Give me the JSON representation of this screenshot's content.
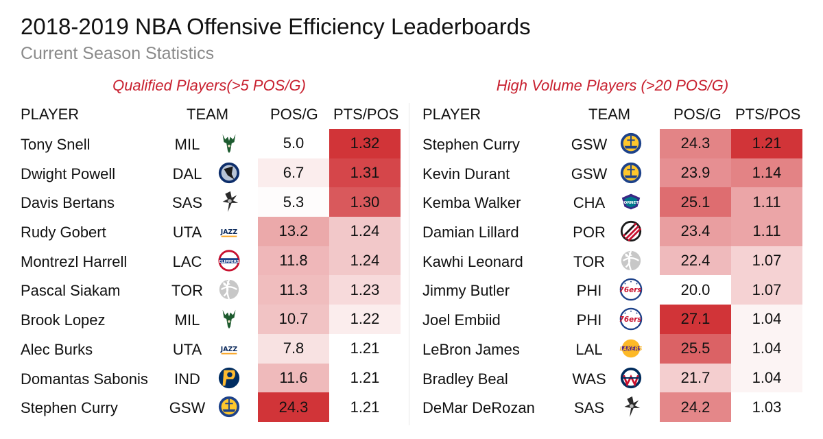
{
  "header": {
    "title": "2018-2019 NBA Offensive Efficiency Leaderboards",
    "subtitle": "Current Season Statistics"
  },
  "colors": {
    "title": "#111111",
    "subtitle": "#8a8a8a",
    "panel_title": "#c8202f",
    "heat_max": "#d13438",
    "heat_min": "#ffffff"
  },
  "chart_data": [
    {
      "type": "table",
      "title": "Qualified Players(>5 POS/G)",
      "columns": [
        "PLAYER",
        "TEAM",
        "POS/G",
        "PTS/POS"
      ],
      "rows": [
        {
          "player": "Tony Snell",
          "team": "MIL",
          "logo": "bucks-logo",
          "pos_g": "5.0",
          "pts_pos": "1.32"
        },
        {
          "player": "Dwight  Powell",
          "team": "DAL",
          "logo": "mavericks-logo",
          "pos_g": "6.7",
          "pts_pos": "1.31"
        },
        {
          "player": "Davis Bertans",
          "team": "SAS",
          "logo": "spurs-logo",
          "pos_g": "5.3",
          "pts_pos": "1.30"
        },
        {
          "player": "Rudy Gobert",
          "team": "UTA",
          "logo": "jazz-logo",
          "pos_g": "13.2",
          "pts_pos": "1.24"
        },
        {
          "player": "Montrezl Harrell",
          "team": "LAC",
          "logo": "clippers-logo",
          "pos_g": "11.8",
          "pts_pos": "1.24"
        },
        {
          "player": "Pascal Siakam",
          "team": "TOR",
          "logo": "raptors-logo",
          "pos_g": "11.3",
          "pts_pos": "1.23"
        },
        {
          "player": "Brook Lopez",
          "team": "MIL",
          "logo": "bucks-logo",
          "pos_g": "10.7",
          "pts_pos": "1.22"
        },
        {
          "player": "Alec Burks",
          "team": "UTA",
          "logo": "jazz-logo",
          "pos_g": "7.8",
          "pts_pos": "1.21"
        },
        {
          "player": "Domantas Sabonis",
          "team": "IND",
          "logo": "pacers-logo",
          "pos_g": "11.6",
          "pts_pos": "1.21"
        },
        {
          "player": "Stephen Curry",
          "team": "GSW",
          "logo": "warriors-logo",
          "pos_g": "24.3",
          "pts_pos": "1.21"
        }
      ]
    },
    {
      "type": "table",
      "title": "High Volume Players (>20 POS/G)",
      "columns": [
        "PLAYER",
        "TEAM",
        "POS/G",
        "PTS/POS"
      ],
      "rows": [
        {
          "player": "Stephen Curry",
          "team": "GSW",
          "logo": "warriors-logo",
          "pos_g": "24.3",
          "pts_pos": "1.21"
        },
        {
          "player": "Kevin Durant",
          "team": "GSW",
          "logo": "warriors-logo",
          "pos_g": "23.9",
          "pts_pos": "1.14"
        },
        {
          "player": "Kemba Walker",
          "team": "CHA",
          "logo": "hornets-logo",
          "pos_g": "25.1",
          "pts_pos": "1.11"
        },
        {
          "player": "Damian Lillard",
          "team": "POR",
          "logo": "blazers-logo",
          "pos_g": "23.4",
          "pts_pos": "1.11"
        },
        {
          "player": "Kawhi Leonard",
          "team": "TOR",
          "logo": "raptors-logo",
          "pos_g": "22.4",
          "pts_pos": "1.07"
        },
        {
          "player": "Jimmy Butler",
          "team": "PHI",
          "logo": "76ers-logo",
          "pos_g": "20.0",
          "pts_pos": "1.07"
        },
        {
          "player": "Joel Embiid",
          "team": "PHI",
          "logo": "76ers-logo",
          "pos_g": "27.1",
          "pts_pos": "1.04"
        },
        {
          "player": "LeBron James",
          "team": "LAL",
          "logo": "lakers-logo",
          "pos_g": "25.5",
          "pts_pos": "1.04"
        },
        {
          "player": "Bradley Beal",
          "team": "WAS",
          "logo": "wizards-logo",
          "pos_g": "21.7",
          "pts_pos": "1.04"
        },
        {
          "player": "DeMar DeRozan",
          "team": "SAS",
          "logo": "spurs-logo",
          "pos_g": "24.2",
          "pts_pos": "1.03"
        }
      ]
    }
  ]
}
